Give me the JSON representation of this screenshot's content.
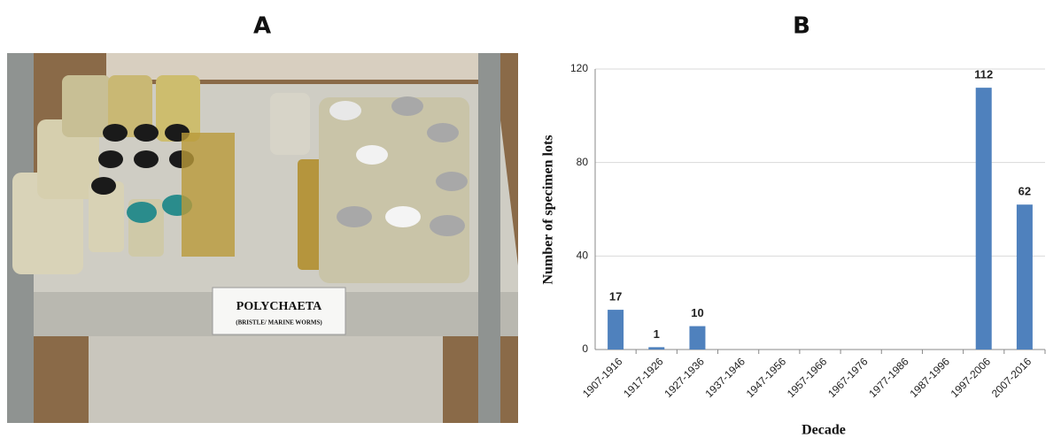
{
  "panel_labels": [
    "A",
    "B"
  ],
  "photo": {
    "label_title": "POLYCHAETA",
    "label_subtitle": "(BRISTLE/ MARINE WORMS)"
  },
  "chart_data": {
    "type": "bar",
    "categories": [
      "1907-1916",
      "1917-1926",
      "1927-1936",
      "1937-1946",
      "1947-1956",
      "1957-1966",
      "1967-1976",
      "1977-1986",
      "1987-1996",
      "1997-2006",
      "2007-2016"
    ],
    "values": [
      17,
      1,
      10,
      0,
      0,
      0,
      0,
      0,
      0,
      112,
      62
    ],
    "color": "#4f81bd",
    "xlabel": "Decade",
    "ylabel": "Number of specimen lots",
    "ylim": [
      0,
      120
    ],
    "yticks": [
      0,
      40,
      80,
      120
    ],
    "grid": true
  }
}
